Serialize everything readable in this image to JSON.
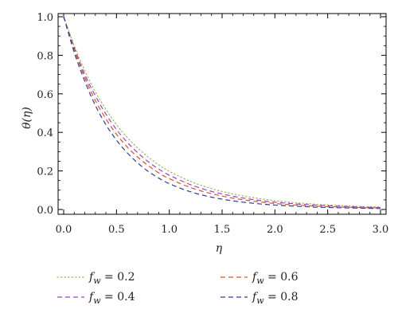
{
  "chart_data": {
    "type": "line",
    "xlabel": "η",
    "ylabel": "θ(η)",
    "xlim": [
      0,
      3.0
    ],
    "ylim": [
      0,
      1.0
    ],
    "x_ticks": [
      "0.0",
      "0.5",
      "1.0",
      "1.5",
      "2.0",
      "2.5",
      "3.0"
    ],
    "y_ticks": [
      "0.0",
      "0.2",
      "0.4",
      "0.6",
      "0.8",
      "1.0"
    ],
    "grid": false,
    "legend_position": "below",
    "x": [
      0,
      0.1,
      0.2,
      0.3,
      0.4,
      0.5,
      0.6,
      0.7,
      0.8,
      0.9,
      1.0,
      1.2,
      1.4,
      1.6,
      1.8,
      2.0,
      2.2,
      2.4,
      2.6,
      2.8,
      3.0
    ],
    "series": [
      {
        "name": "f_w = 0.2",
        "legend_symbol": "f",
        "legend_subscript": "w",
        "legend_value": " = 0.2",
        "color": "#8fbf5a",
        "dash": "dotted",
        "values": [
          1.0,
          0.85,
          0.72,
          0.61,
          0.52,
          0.44,
          0.375,
          0.32,
          0.272,
          0.232,
          0.198,
          0.146,
          0.108,
          0.081,
          0.061,
          0.046,
          0.035,
          0.027,
          0.021,
          0.016,
          0.013
        ]
      },
      {
        "name": "f_w = 0.4",
        "legend_symbol": "f",
        "legend_subscript": "w",
        "legend_value": " = 0.4",
        "color": "#a23cc8",
        "dash": "dashed",
        "values": [
          1.0,
          0.84,
          0.7,
          0.59,
          0.495,
          0.415,
          0.35,
          0.295,
          0.248,
          0.21,
          0.178,
          0.129,
          0.094,
          0.069,
          0.051,
          0.038,
          0.029,
          0.022,
          0.017,
          0.013,
          0.01
        ]
      },
      {
        "name": "f_w = 0.6",
        "legend_symbol": "f",
        "legend_subscript": "w",
        "legend_value": " = 0.6",
        "color": "#d9541e",
        "dash": "dashed",
        "values": [
          1.0,
          0.83,
          0.685,
          0.565,
          0.47,
          0.39,
          0.325,
          0.272,
          0.228,
          0.19,
          0.16,
          0.114,
          0.082,
          0.059,
          0.043,
          0.031,
          0.023,
          0.017,
          0.013,
          0.01,
          0.008
        ]
      },
      {
        "name": "f_w = 0.8",
        "legend_symbol": "f",
        "legend_subscript": "w",
        "legend_value": " = 0.8",
        "color": "#2b3c9e",
        "dash": "dashed",
        "values": [
          1.0,
          0.815,
          0.665,
          0.54,
          0.44,
          0.36,
          0.295,
          0.242,
          0.198,
          0.163,
          0.134,
          0.092,
          0.064,
          0.045,
          0.032,
          0.023,
          0.017,
          0.012,
          0.009,
          0.007,
          0.005
        ]
      }
    ]
  }
}
